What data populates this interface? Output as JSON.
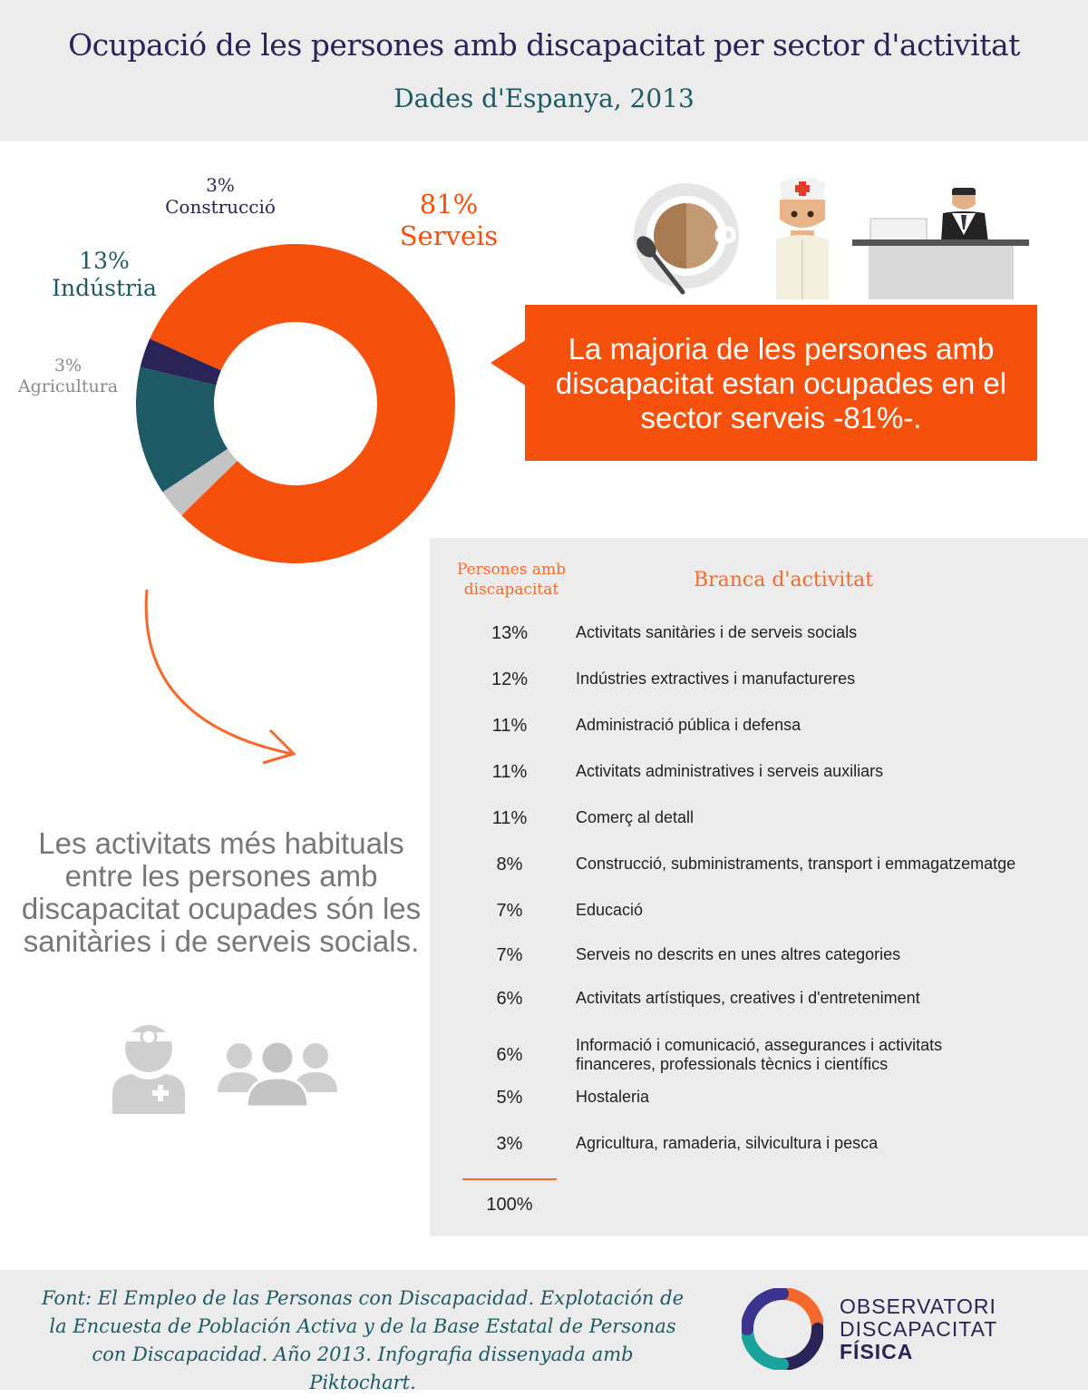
{
  "header": {
    "title": "Ocupació de les persones amb discapacitat per sector d'activitat",
    "subtitle": "Dades d'Espanya, 2013"
  },
  "chart_data": [
    {
      "type": "pie",
      "title": "",
      "slices": [
        {
          "pct_label": "81%",
          "name": "Serveis",
          "value": 81,
          "color": "#f5500c"
        },
        {
          "pct_label": "3%",
          "name": "Agricultura",
          "value": 3,
          "color": "#c4c4c4"
        },
        {
          "pct_label": "13%",
          "name": "Indústria",
          "value": 13,
          "color": "#1e5a66"
        },
        {
          "pct_label": "3%",
          "name": "Construcció",
          "value": 3,
          "color": "#2a2358"
        }
      ]
    },
    {
      "type": "table",
      "headers": {
        "pct": "Persones amb discapacitat",
        "branch": "Branca d'activitat"
      },
      "rows": [
        {
          "value": 13,
          "pct": "13%",
          "branch": "Activitats sanitàries i de serveis socials"
        },
        {
          "value": 12,
          "pct": "12%",
          "branch": "Indústries extractives i manufactureres"
        },
        {
          "value": 11,
          "pct": "11%",
          "branch": "Administració pública i defensa"
        },
        {
          "value": 11,
          "pct": "11%",
          "branch": "Activitats administratives i serveis auxiliars"
        },
        {
          "value": 11,
          "pct": "11%",
          "branch": "Comerç al detall"
        },
        {
          "value": 8,
          "pct": "8%",
          "branch": "Construcció, subministraments, transport i emmagatzematge"
        },
        {
          "value": 7,
          "pct": "7%",
          "branch": "Educació"
        },
        {
          "value": 7,
          "pct": "7%",
          "branch": "Serveis no descrits en unes altres categories"
        },
        {
          "value": 6,
          "pct": "6%",
          "branch": "Activitats artístiques, creatives i d'entreteniment"
        },
        {
          "value": 6,
          "pct": "6%",
          "branch": "Informació i comunicació, assegurances i activitats financeres, professionals tècnics i científics"
        },
        {
          "value": 5,
          "pct": "5%",
          "branch": "Hostaleria"
        },
        {
          "value": 3,
          "pct": "3%",
          "branch": "Agricultura, ramaderia, silvicultura i pesca"
        }
      ],
      "total": "100%"
    }
  ],
  "callout": {
    "text": "La majoria de les persones amb discapacitat estan ocupades en el sector serveis -81%-."
  },
  "left_text": "Les activitats més habituals entre les persones amb discapacitat ocupades són les sanitàries i de serveis socials.",
  "footer": {
    "source": "Font: El Empleo de las Personas con Discapacidad. Explotación de la Encuesta de Población Activa y de la Base Estatal de Personas con Discapacidad. Año 2013. Infografia dissenyada amb Piktochart.",
    "logo_line1": "OBSERVATORI",
    "logo_line2": "DISCAPACITAT",
    "logo_line3": "FÍSICA"
  },
  "colors": {
    "orange": "#f5500c",
    "teal": "#1e5a66",
    "navy": "#2a2358",
    "grey": "#c4c4c4"
  },
  "icons": [
    "coffee-cup-icon",
    "nurse-icon",
    "receptionist-desk-icon",
    "curved-arrow-icon",
    "doctor-icon",
    "group-icon",
    "logo-icon"
  ]
}
